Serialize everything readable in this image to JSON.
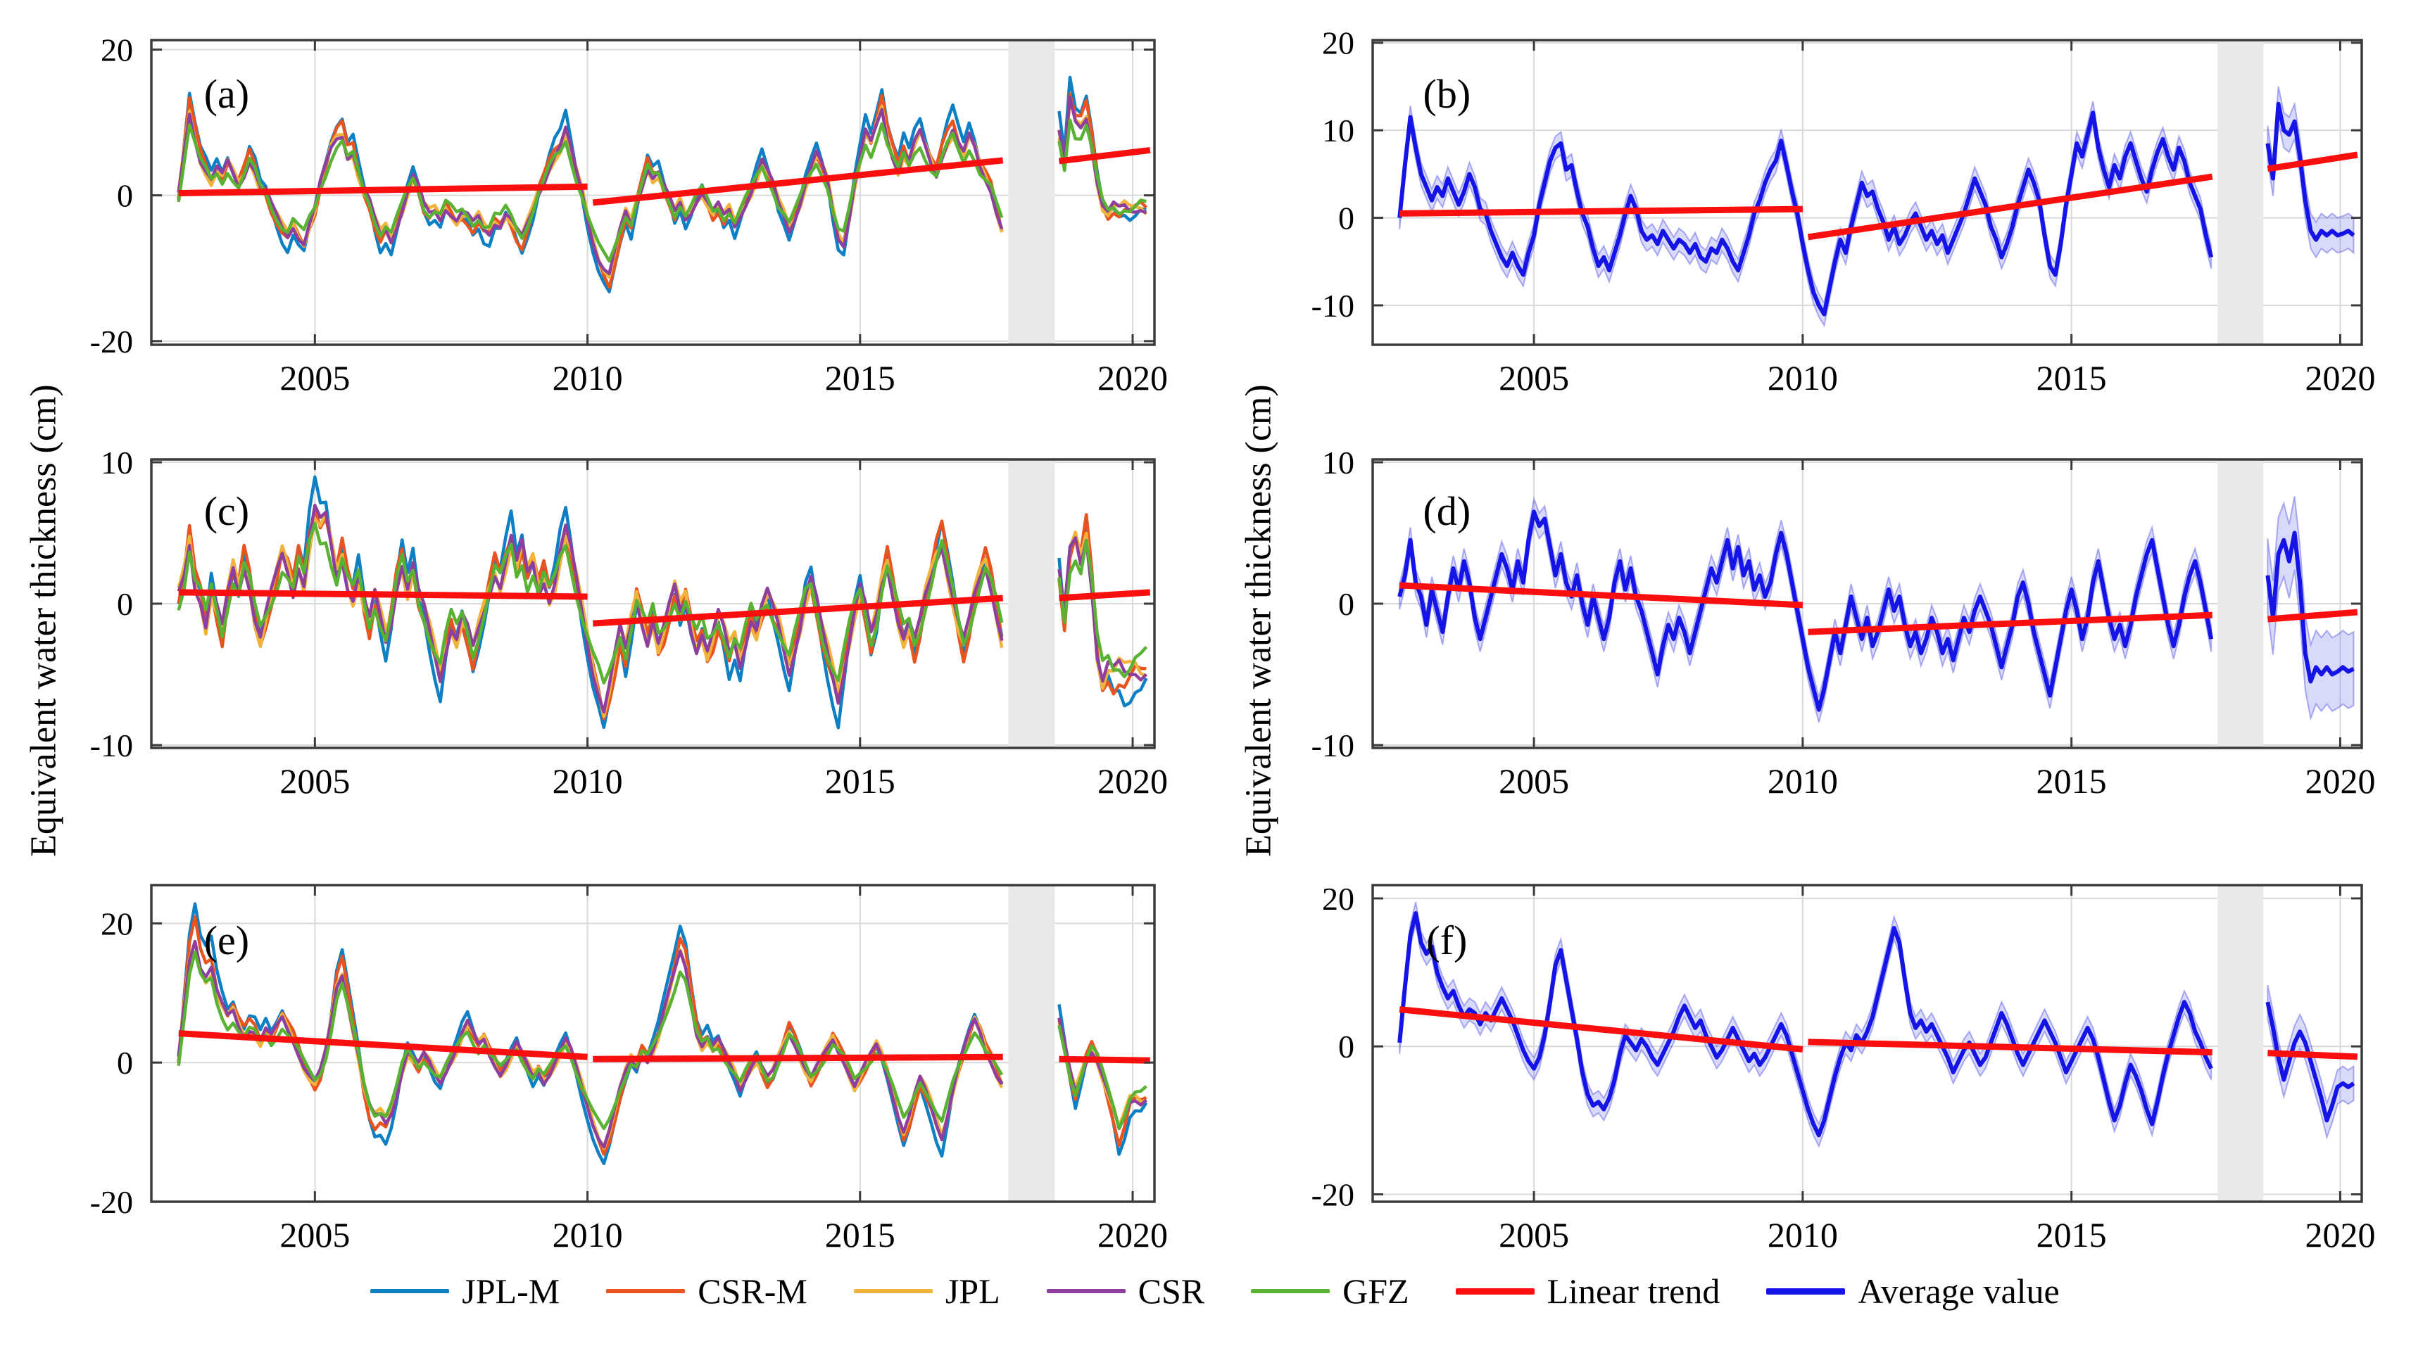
{
  "figure": {
    "ylabel_left": "Equivalent water thickness (cm)",
    "ylabel_right": "Equivalent water thickness (cm)",
    "background": "#FFFFFF"
  },
  "legend": {
    "items": [
      {
        "label": "JPL-M",
        "color": "#0D7FC4",
        "thickness": 6
      },
      {
        "label": "CSR-M",
        "color": "#E8531F",
        "thickness": 6
      },
      {
        "label": "JPL",
        "color": "#F2B33C",
        "thickness": 6
      },
      {
        "label": "CSR",
        "color": "#8E3F9E",
        "thickness": 6
      },
      {
        "label": "GFZ",
        "color": "#5AB232",
        "thickness": 6
      },
      {
        "label": "Linear trend",
        "color": "#FA0F0F",
        "thickness": 9
      },
      {
        "label": "Average value",
        "color": "#1414E6",
        "thickness": 9
      }
    ]
  },
  "chart_data": {
    "type": "line",
    "title": "",
    "xlabel": "",
    "ylabel": "Equivalent water thickness (cm)",
    "grid": true,
    "legend_position": "bottom",
    "xlim": [
      2002,
      2020.4
    ],
    "xticks": [
      2005,
      2010,
      2015,
      2020
    ],
    "x_pre_start": 2002.5,
    "x_post_start": 2018.65,
    "dx": 0.1,
    "data_gap_years": [
      2017.72,
      2018.57
    ],
    "gap_band_color": "#E9E9E9",
    "grid_color": "#D9D9D9",
    "axis_color": "#3B3B3B",
    "trend_color": "#FA0F0F",
    "average_color": "#1414E6",
    "band_fill": "rgba(80,80,230,0.22)",
    "band_edge": "rgba(80,80,230,0.45)",
    "jitter_freq": 6.9,
    "provider_series": [
      {
        "name": "JPL-M",
        "color": "#0D7FC4",
        "scale": 1.28,
        "jitter_amp": 0.9,
        "jitter_phase": 0.5
      },
      {
        "name": "CSR-M",
        "color": "#E8531F",
        "scale": 1.12,
        "jitter_amp": 0.8,
        "jitter_phase": 2.1
      },
      {
        "name": "JPL",
        "color": "#F2B33C",
        "scale": 0.97,
        "jitter_amp": 0.7,
        "jitter_phase": 4.0
      },
      {
        "name": "CSR",
        "color": "#8E3F9E",
        "scale": 1.0,
        "jitter_amp": 0.6,
        "jitter_phase": 5.3
      },
      {
        "name": "GFZ",
        "color": "#5AB232",
        "scale": 0.86,
        "jitter_amp": 0.9,
        "jitter_phase": 1.2
      }
    ],
    "bases": {
      "A": {
        "pre": [
          0,
          6,
          11.5,
          8,
          5,
          3.5,
          2,
          3.5,
          2.5,
          4.5,
          3,
          1.5,
          3,
          5,
          3.5,
          1,
          0.5,
          -1.5,
          -3,
          -4.5,
          -5.5,
          -4,
          -5.5,
          -6.5,
          -4,
          -2,
          1.5,
          4,
          6.5,
          8,
          8.5,
          5.5,
          6,
          3,
          0.5,
          -1,
          -3.5,
          -5.5,
          -4.5,
          -6,
          -4,
          -2,
          0.5,
          2.5,
          1,
          -1.5,
          -2.5,
          -2,
          -3,
          -1.5,
          -2.5,
          -3.5,
          -2.5,
          -3,
          -4,
          -3,
          -4.5,
          -5,
          -3.5,
          -4,
          -2.5,
          -3.5,
          -5,
          -6,
          -4,
          -2,
          0.5,
          2,
          4,
          5.5,
          6.5,
          8.8,
          6,
          3,
          0.5,
          -3,
          -6,
          -8.5,
          -10,
          -11,
          -8,
          -5,
          -2.5,
          -4,
          -1,
          1.5,
          4,
          2.5,
          3,
          1,
          -0.5,
          -2.5,
          -1,
          -3,
          -2,
          -0.5,
          0.5,
          -1,
          -2.5,
          -1.5,
          -3,
          -2,
          -4,
          -2.5,
          -1,
          0.5,
          2.5,
          4.5,
          3,
          1.5,
          -1,
          -2.5,
          -4.5,
          -3,
          -1,
          1.5,
          3.5,
          5.5,
          4,
          2,
          -2,
          -5.5,
          -6.5,
          -3,
          1.5,
          5,
          8.5,
          7,
          9.5,
          12,
          8,
          5.5,
          3.5,
          6,
          4.5,
          7,
          8.5,
          6.5,
          4.5,
          3,
          5.5,
          7.5,
          9,
          7,
          5.5,
          8,
          6.5,
          4,
          2.5,
          1,
          -2,
          -4.5
        ],
        "post": [
          8.5,
          4.5,
          13,
          10,
          9.5,
          11,
          7,
          2,
          -1.5,
          -2.5,
          -1.5,
          -2,
          -1.5,
          -2,
          -1.8,
          -1.5,
          -2
        ]
      },
      "C": {
        "pre": [
          0.5,
          2,
          4.5,
          1.5,
          0.5,
          -1.5,
          1,
          -0.5,
          -2,
          0.5,
          2.5,
          1,
          3,
          1.5,
          -1,
          -2.5,
          -1,
          0.5,
          2,
          3.5,
          2.5,
          1,
          3,
          1.5,
          4.5,
          6.5,
          5.5,
          6,
          4,
          2,
          3.5,
          1.5,
          0.5,
          2,
          0,
          -1.5,
          0.5,
          -1,
          -2.5,
          -1,
          1.5,
          3,
          1,
          2.5,
          0.5,
          -0.5,
          -2,
          -3.5,
          -5,
          -3,
          -1.5,
          -2.5,
          -1,
          -2,
          -3.5,
          -2,
          -0.5,
          1,
          2.5,
          1.5,
          3,
          4.5,
          2.5,
          4,
          2,
          3,
          1,
          2,
          0.5,
          1.5,
          3.5,
          5,
          3.5,
          1.5,
          -0.5,
          -2.5,
          -4.5,
          -6,
          -7.5,
          -6,
          -4,
          -2,
          -3.5,
          -1.5,
          0.5,
          -1,
          -2.5,
          -1,
          -3,
          -2,
          -0.5,
          1,
          -0.5,
          0.5,
          -1.5,
          -3,
          -2,
          -3.5,
          -2.5,
          -1,
          -2,
          -3.5,
          -2.5,
          -4,
          -2.5,
          -1,
          -2,
          -0.5,
          0.5,
          -0.5,
          -1.5,
          -3,
          -4.5,
          -3,
          -1.5,
          0.5,
          1.5,
          0,
          -2,
          -3.5,
          -5,
          -6.5,
          -4.5,
          -2.5,
          -0.5,
          1,
          -0.5,
          -2.5,
          -1,
          1.5,
          3,
          1,
          -1,
          -2.5,
          -1.5,
          -3,
          -1.5,
          0.5,
          2,
          3.5,
          4.5,
          2.5,
          0.5,
          -1.5,
          -3,
          -1.5,
          0.5,
          2,
          3,
          1.5,
          -0.5,
          -2.5
        ],
        "post": [
          2,
          -1,
          3.5,
          4.5,
          3,
          5,
          1.5,
          -3.5,
          -5.5,
          -4.5,
          -5,
          -4.5,
          -5,
          -4.8,
          -4.5,
          -4.8,
          -4.6
        ]
      },
      "E": {
        "pre": [
          0.5,
          8,
          15,
          18,
          14,
          12.5,
          13.5,
          10,
          8,
          6.5,
          7.5,
          5.5,
          4,
          5,
          4.5,
          3,
          4.5,
          3.5,
          5,
          6.5,
          5,
          3.5,
          1.5,
          -0.5,
          -2,
          -3,
          -1.5,
          1.5,
          6,
          11,
          13,
          9,
          5,
          1,
          -3.5,
          -6.5,
          -8,
          -7.5,
          -8.5,
          -7,
          -4.5,
          -1,
          1.5,
          0.5,
          -0.5,
          1,
          0,
          -1.5,
          -2.5,
          -1,
          0.5,
          2,
          4,
          5.5,
          4,
          2.5,
          3.5,
          1.5,
          0,
          -1.5,
          -0.5,
          1,
          2.5,
          1,
          -0.5,
          -2,
          -1,
          -2.5,
          -1.5,
          0,
          1.5,
          3,
          1.5,
          -1,
          -3.5,
          -6,
          -8.5,
          -10.5,
          -12,
          -10,
          -7,
          -4,
          -1.5,
          0.5,
          -0.5,
          1.5,
          0.5,
          2,
          4,
          7,
          10,
          13,
          16,
          14,
          9,
          4.5,
          2.5,
          3.5,
          2,
          3,
          1.5,
          0,
          -1.5,
          -3.5,
          -2,
          -0.5,
          0.5,
          -1,
          -2.5,
          -1.5,
          0.5,
          2.5,
          4.5,
          3,
          1,
          -1,
          -2.5,
          -1,
          0.5,
          2,
          3.5,
          2,
          0.5,
          -1.5,
          -3.5,
          -2,
          -0.5,
          1,
          2.5,
          1,
          -1.5,
          -4.5,
          -7.5,
          -10,
          -8,
          -5,
          -2.5,
          -4,
          -6,
          -8.5,
          -10.5,
          -7.5,
          -4,
          -1,
          1.5,
          4,
          6,
          4.5,
          2,
          0.5,
          -1.5,
          -3
        ],
        "post": [
          6,
          2.5,
          -1.5,
          -4.5,
          -2,
          0.5,
          2,
          0.5,
          -2,
          -4.5,
          -7,
          -10,
          -8,
          -5.5,
          -5,
          -5.5,
          -5
        ]
      }
    },
    "panels": [
      {
        "id": "a",
        "label": "(a)",
        "row": 0,
        "col": 0,
        "kind": "multi",
        "base": "A",
        "ylim": [
          -20.5,
          21.3
        ],
        "yticks": [
          -20,
          0,
          20
        ],
        "trend_segments": [
          [
            2002.5,
            0.3,
            2010.0,
            1.2
          ],
          [
            2010.1,
            -1.0,
            2017.62,
            4.8
          ],
          [
            2018.65,
            4.7,
            2020.32,
            6.2
          ]
        ]
      },
      {
        "id": "b",
        "label": "(b)",
        "row": 0,
        "col": 1,
        "kind": "average",
        "base": "A",
        "ylim": [
          -14.5,
          20.3
        ],
        "yticks": [
          -10,
          0,
          10,
          20
        ],
        "band_halfwidth": 1.3,
        "band_halfwidth_post": 2.0,
        "trend_segments": [
          [
            2002.5,
            0.5,
            2010.0,
            1.0
          ],
          [
            2010.1,
            -2.2,
            2017.62,
            4.7
          ],
          [
            2018.65,
            5.6,
            2020.32,
            7.2
          ]
        ]
      },
      {
        "id": "c",
        "label": "(c)",
        "row": 1,
        "col": 0,
        "kind": "multi",
        "base": "C",
        "ylim": [
          -10.2,
          10.2
        ],
        "yticks": [
          -10,
          0,
          10
        ],
        "trend_segments": [
          [
            2002.5,
            0.8,
            2010.0,
            0.5
          ],
          [
            2010.1,
            -1.4,
            2017.62,
            0.4
          ],
          [
            2018.65,
            0.4,
            2020.32,
            0.8
          ]
        ]
      },
      {
        "id": "d",
        "label": "(d)",
        "row": 1,
        "col": 1,
        "kind": "average",
        "base": "C",
        "ylim": [
          -10.2,
          10.2
        ],
        "yticks": [
          -10,
          0,
          10
        ],
        "band_halfwidth": 0.9,
        "band_halfwidth_post": 2.6,
        "trend_segments": [
          [
            2002.5,
            1.3,
            2010.0,
            -0.1
          ],
          [
            2010.1,
            -2.0,
            2017.62,
            -0.8
          ],
          [
            2018.65,
            -1.1,
            2020.32,
            -0.6
          ]
        ]
      },
      {
        "id": "e",
        "label": "(e)",
        "row": 2,
        "col": 0,
        "kind": "multi",
        "base": "E",
        "ylim": [
          -20,
          25.5
        ],
        "yticks": [
          -20,
          0,
          20
        ],
        "trend_segments": [
          [
            2002.5,
            4.2,
            2010.0,
            0.8
          ],
          [
            2010.1,
            0.5,
            2017.62,
            0.8
          ],
          [
            2018.65,
            0.5,
            2020.32,
            0.3
          ]
        ]
      },
      {
        "id": "f",
        "label": "(f)",
        "row": 2,
        "col": 1,
        "kind": "average",
        "base": "E",
        "ylim": [
          -21,
          21.8
        ],
        "yticks": [
          -20,
          0,
          20
        ],
        "band_halfwidth": 1.5,
        "band_halfwidth_post": 2.3,
        "trend_segments": [
          [
            2002.5,
            5.0,
            2010.0,
            -0.4
          ],
          [
            2010.1,
            0.6,
            2017.62,
            -0.8
          ],
          [
            2018.65,
            -0.9,
            2020.32,
            -1.4
          ]
        ]
      }
    ]
  }
}
